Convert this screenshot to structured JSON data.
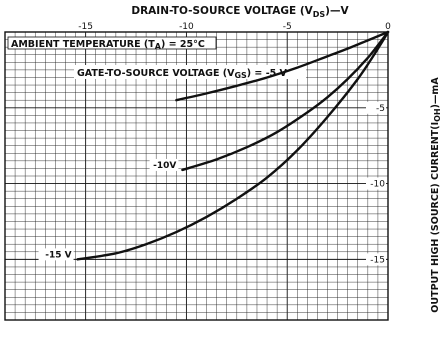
{
  "chart_data": {
    "type": "line",
    "title": "DRAIN-TO-SOURCE VOLTAGE (V",
    "title_sub": "DS",
    "title_suffix": ")—V",
    "xlabel_position": "top",
    "ylabel": "OUTPUT HIGH (SOURCE) CURRENT(I",
    "ylabel_sub": "OH",
    "ylabel_suffix": ")—mA",
    "ylabel_position": "right",
    "xlim": [
      -19,
      0
    ],
    "ylim": [
      0,
      19
    ],
    "y_direction": "down",
    "x_ticks": [
      {
        "value": -15,
        "label": "-15"
      },
      {
        "value": -10,
        "label": "-10"
      },
      {
        "value": -5,
        "label": "-5"
      },
      {
        "value": 0,
        "label": "0"
      }
    ],
    "y_ticks": [
      {
        "value": 5,
        "label": "-5"
      },
      {
        "value": 10,
        "label": "-10"
      },
      {
        "value": 15,
        "label": "-15"
      }
    ],
    "grid": true,
    "annotations": {
      "ambient_prefix": "AMBIENT TEMPERATURE (T",
      "ambient_sub": "A",
      "ambient_suffix": ") = 25°C",
      "gate_prefix": "GATE-TO-SOURCE VOLTAGE (V",
      "gate_sub": "GS",
      "gate_suffix": ") = -5 V"
    },
    "series": [
      {
        "name": "-5 V",
        "label": "",
        "x": [
          -10.5,
          -9,
          -7.5,
          -6,
          -4.5,
          -3,
          -2,
          -1,
          -0.4,
          0
        ],
        "y": [
          4.5,
          4.05,
          3.55,
          3.0,
          2.35,
          1.6,
          1.1,
          0.55,
          0.22,
          0
        ]
      },
      {
        "name": "-10 V",
        "label": "-10V",
        "x": [
          -10.2,
          -8.5,
          -7,
          -5.5,
          -4,
          -3,
          -2,
          -1,
          -0.4,
          0
        ],
        "y": [
          9.1,
          8.4,
          7.6,
          6.6,
          5.3,
          4.3,
          3.1,
          1.7,
          0.7,
          0
        ]
      },
      {
        "name": "-15 V",
        "label": "-15 V",
        "x": [
          -15.4,
          -13.5,
          -12,
          -10.5,
          -9,
          -7.5,
          -6,
          -4.5,
          -3,
          -1.5,
          -0.5,
          0
        ],
        "y": [
          15.0,
          14.6,
          14.0,
          13.2,
          12.2,
          11.0,
          9.6,
          7.8,
          5.6,
          3.1,
          1.1,
          0
        ]
      }
    ]
  }
}
